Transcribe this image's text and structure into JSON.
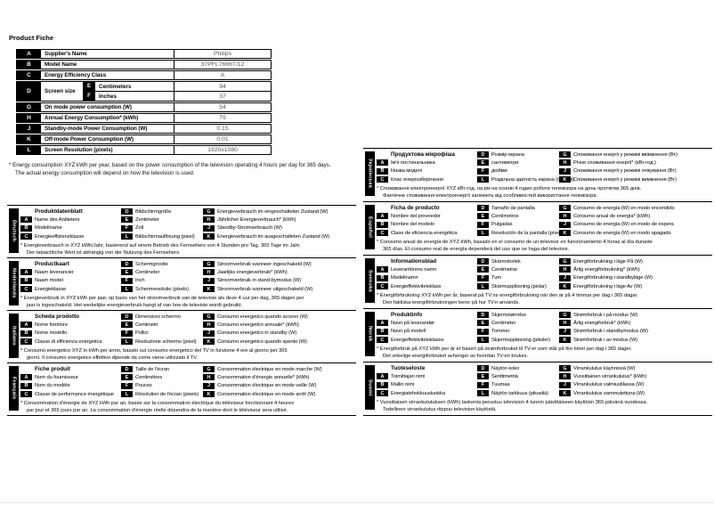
{
  "page_title": "Product Fiche",
  "colors": {
    "badge_bg": "#000000",
    "badge_fg": "#ffffff",
    "text": "#000000"
  },
  "table": {
    "rows": [
      {
        "key": "A",
        "label": "Supplier's Name",
        "value": "Philips"
      },
      {
        "key": "B",
        "label": "Model Name",
        "value": "37PFL7666T/12"
      },
      {
        "key": "C",
        "label": "Energy Efficiency Class",
        "value": "A"
      },
      {
        "key": "D",
        "label": "Screen size",
        "sub": [
          {
            "key": "E",
            "label": "Centimeters",
            "value": "94"
          },
          {
            "key": "F",
            "label": "Inches",
            "value": "37"
          }
        ]
      },
      {
        "key": "G",
        "label": "On mode power consumption (W)",
        "value": "54"
      },
      {
        "key": "H",
        "label": "Annual Energy Consumption* (kWh)",
        "value": "79"
      },
      {
        "key": "J",
        "label": "Standby-mode Power Consumption (W)",
        "value": "0.15"
      },
      {
        "key": "K",
        "label": "Off-mode Power Consumption (W)",
        "value": "0.01"
      },
      {
        "key": "L",
        "label": "Screen Resolution (pixels)",
        "value": "1920x1080"
      }
    ]
  },
  "footnote": "* Energy consumption XYZ kWh per year, based on the power consumption of the television operating 4 hours per day for 365 days.\nThe actual energy consumption will depend on how the television is used.",
  "sections": {
    "left": [
      {
        "language": "Deutsch",
        "title": "Produktdatenblatt",
        "items_abc": [
          {
            "key": "A",
            "label": "Name des Anbieters"
          },
          {
            "key": "B",
            "label": "Modellname"
          },
          {
            "key": "C",
            "label": "Energieeffizienzklasse"
          }
        ],
        "items_defl": [
          {
            "key": "D",
            "label": "Bildschirmgröße"
          },
          {
            "key": "E",
            "label": "Zentimeter"
          },
          {
            "key": "F",
            "label": "Zoll"
          },
          {
            "key": "L",
            "label": "Bildschirmauflösung (pixel)"
          }
        ],
        "items_ghjk": [
          {
            "key": "G",
            "label": "Energieverbrauch im eingeschalteten Zustand (W)"
          },
          {
            "key": "H",
            "label": "Jährlicher Energieverbrauch* (kWh)"
          },
          {
            "key": "J",
            "label": "Standby-Stromverbrauch (W)"
          },
          {
            "key": "K",
            "label": "Energieverbrauch im ausgeschalteten Zustand (W)"
          }
        ],
        "footnote": "* Energieverbrauch in XYZ kWh/Jahr, basierend auf einem Betrieb des Fernsehers von 4 Stunden pro Tag, 365 Tage im Jahr.\nDer tatsächliche Wert ist abhängig von der Nutzung des Fernsehers."
      },
      {
        "language": "Nederlands",
        "title": "Productkaart",
        "items_abc": [
          {
            "key": "A",
            "label": "Naam leverancier"
          },
          {
            "key": "B",
            "label": "Naam model"
          },
          {
            "key": "C",
            "label": "Energieklasse"
          }
        ],
        "items_defl": [
          {
            "key": "D",
            "label": "Schermgrootte"
          },
          {
            "key": "E",
            "label": "Centimeter"
          },
          {
            "key": "F",
            "label": "Inch"
          },
          {
            "key": "L",
            "label": "Schermresolutie (pixels)"
          }
        ],
        "items_ghjk": [
          {
            "key": "G",
            "label": "Stroomverbruik wanneer ingeschakeld (W)"
          },
          {
            "key": "H",
            "label": "Jaarlijks energieverbruik* (kWh)"
          },
          {
            "key": "J",
            "label": "Stroomverbruik in stand-bymodus (W)"
          },
          {
            "key": "K",
            "label": "Stroomverbruik wanneer uitgeschakeld (W)"
          }
        ],
        "footnote": "* Energieverbruik in XYZ kWh per jaar, op basis van het stroomverbruik van de televisie als deze 4 uur per dag, 365 dagen per\njaar is ingeschakeld. Het werkelijke energieverbruik hangt af van hoe de televisie wordt gebruikt."
      },
      {
        "language": "Italiano",
        "title": "Scheda prodotto",
        "items_abc": [
          {
            "key": "A",
            "label": "Nome fornitore"
          },
          {
            "key": "B",
            "label": "Nome modello"
          },
          {
            "key": "C",
            "label": "Classe di efficienza energetica"
          }
        ],
        "items_defl": [
          {
            "key": "D",
            "label": "Dimensioni schermo"
          },
          {
            "key": "E",
            "label": "Centimetri"
          },
          {
            "key": "F",
            "label": "Pollici"
          },
          {
            "key": "L",
            "label": "Risoluzione schermo (pixel)"
          }
        ],
        "items_ghjk": [
          {
            "key": "G",
            "label": "Consumo energetico quando acceso (W)"
          },
          {
            "key": "H",
            "label": "Consumo energetico annuale* (kWh)"
          },
          {
            "key": "J",
            "label": "Consumo energetico in standby (W)"
          },
          {
            "key": "K",
            "label": "Consumo energetico quando spento (W)"
          }
        ],
        "footnote": "* Consumo energetico XYZ in kWh per anno, basato sul consumo energetico del TV in funzione 4 ore al giorno per 365\ngiorni. Il consumo energetico effettivo dipende da come viene utilizzato il TV."
      },
      {
        "language": "Français",
        "title": "Fiche produit",
        "items_abc": [
          {
            "key": "A",
            "label": "Nom du fournisseur"
          },
          {
            "key": "B",
            "label": "Nom du modèle"
          },
          {
            "key": "C",
            "label": "Classe de performance énergétique"
          }
        ],
        "items_defl": [
          {
            "key": "D",
            "label": "Taille de l'écran"
          },
          {
            "key": "E",
            "label": "Centimètres"
          },
          {
            "key": "F",
            "label": "Pouces"
          },
          {
            "key": "L",
            "label": "Résolution de l'écran (pixels)"
          }
        ],
        "items_ghjk": [
          {
            "key": "G",
            "label": "Consommation électrique en mode marche (W)"
          },
          {
            "key": "H",
            "label": "Consommation d'énergie annuelle* (kWh)"
          },
          {
            "key": "J",
            "label": "Consommation électrique en mode veille (W)"
          },
          {
            "key": "K",
            "label": "Consommation électrique en mode arrêt (W)"
          }
        ],
        "footnote": "* Consommation d'énergie de XYZ kWh par an, basée sur la consommation électrique du téléviseur fonctionnant 4 heures\npar jour et 365 jours par an. La consommation d'énergie réelle dépendra de la manière dont le téléviseur sera utilisé."
      }
    ],
    "right": [
      {
        "language": "Українська",
        "title": "Продуктова мікрофіша",
        "items_abc": [
          {
            "key": "A",
            "label": "Ім'я постачальника"
          },
          {
            "key": "B",
            "label": "Назва моделі"
          },
          {
            "key": "C",
            "label": "Клас енергозберігання"
          }
        ],
        "items_defl": [
          {
            "key": "D",
            "label": "Розмір екрана"
          },
          {
            "key": "E",
            "label": "сантиметри"
          },
          {
            "key": "F",
            "label": "дюйми"
          },
          {
            "key": "L",
            "label": "Роздільна здатність екрана (пікселі)"
          }
        ],
        "items_ghjk": [
          {
            "key": "G",
            "label": "Споживання енергії у режимі ввімкнення (Вт)"
          },
          {
            "key": "H",
            "label": "Річне споживання енергії* (кВт-год.)"
          },
          {
            "key": "J",
            "label": "Споживання енергії у режимі очікування (Вт)"
          },
          {
            "key": "K",
            "label": "Споживання енергії у режимі вимкнення (Вт)"
          }
        ],
        "footnote": "* Споживання електроенергії XYZ кВт-год. на рік на основі 4 годин роботи телевізора на день протягом 365 днів.\nФактичне споживання електроенергії залежить від особливостей використання телевізора."
      },
      {
        "language": "Español",
        "title": "Ficha de producto",
        "items_abc": [
          {
            "key": "A",
            "label": "Nombre del proveedor"
          },
          {
            "key": "B",
            "label": "Nombre del modelo"
          },
          {
            "key": "C",
            "label": "Clase de eficiencia energética"
          }
        ],
        "items_defl": [
          {
            "key": "D",
            "label": "Tamaño de pantalla"
          },
          {
            "key": "E",
            "label": "Centímetros"
          },
          {
            "key": "F",
            "label": "Pulgadas"
          },
          {
            "key": "L",
            "label": "Resolución de la pantalla (píxeles)"
          }
        ],
        "items_ghjk": [
          {
            "key": "G",
            "label": "Consumo de energía (W) en modo encendido"
          },
          {
            "key": "H",
            "label": "Consumo anual de energía* (kWh)"
          },
          {
            "key": "J",
            "label": "Consumo de energía (W) en modo de espera"
          },
          {
            "key": "K",
            "label": "Consumo de energía (W) en modo apagado"
          }
        ],
        "footnote": "* Consumo anual de energía de XYZ kWh, basado en el consumo de un televisor en funcionamiento 4 horas al día durante\n365 días. El consumo real de energía dependerá del uso que se haga del televisor."
      },
      {
        "language": "Svenska",
        "title": "Informationsblad",
        "items_abc": [
          {
            "key": "A",
            "label": "Leverantörens namn"
          },
          {
            "key": "B",
            "label": "Modellnamn"
          },
          {
            "key": "C",
            "label": "Energieffektivitetsklass"
          }
        ],
        "items_defl": [
          {
            "key": "D",
            "label": "Skärmstorlek"
          },
          {
            "key": "E",
            "label": "Centimetrar"
          },
          {
            "key": "F",
            "label": "Tum"
          },
          {
            "key": "L",
            "label": "Skärmupplösning (pixlar)"
          }
        ],
        "items_ghjk": [
          {
            "key": "G",
            "label": "Energiförbrukning i läge På (W)"
          },
          {
            "key": "H",
            "label": "Årlig energiförbrukning* (kWh)"
          },
          {
            "key": "J",
            "label": "Energiförbrukning i standbyläge (W)"
          },
          {
            "key": "K",
            "label": "Energiförbrukning i läge Av (W)"
          }
        ],
        "footnote": "* Energiförbrukning XYZ kWh per år, baserat på TV:ns energiförbrukning när den är på 4 timmar per dag i 365 dagar.\nDen faktiska energiförbrukningen beror på hur TV:n används."
      },
      {
        "language": "Norsk",
        "title": "Produktinfo",
        "items_abc": [
          {
            "key": "A",
            "label": "Navn på leverandør"
          },
          {
            "key": "B",
            "label": "Navn på modell"
          },
          {
            "key": "C",
            "label": "Energieffektivitetsklasse"
          }
        ],
        "items_defl": [
          {
            "key": "D",
            "label": "Skjermstørrelse"
          },
          {
            "key": "E",
            "label": "Centimeter"
          },
          {
            "key": "F",
            "label": "Tommer"
          },
          {
            "key": "L",
            "label": "Skjermoppløsning (piksler)"
          }
        ],
        "items_ghjk": [
          {
            "key": "G",
            "label": "Strømforbruk i på-modus (W)"
          },
          {
            "key": "H",
            "label": "Årlig energiforbruk* (kWh)"
          },
          {
            "key": "J",
            "label": "Strømforbruk i standbymodus (W)"
          },
          {
            "key": "K",
            "label": "Strømforbruk i av-modus (W)"
          }
        ],
        "footnote": "* Energiforbruk på XYZ kWh per år er basert på strømforbruket til TV-er som står på fire timer per dag i 365 dager.\nDet virkelige energiforbruket avhenger av hvordan TV-en brukes."
      },
      {
        "language": "Suomi",
        "title": "Tuoteseloste",
        "items_abc": [
          {
            "key": "A",
            "label": "Toimittajan nimi"
          },
          {
            "key": "B",
            "label": "Mallin nimi"
          },
          {
            "key": "C",
            "label": "Energiatehokkuusluokka"
          }
        ],
        "items_defl": [
          {
            "key": "D",
            "label": "Näytön koko"
          },
          {
            "key": "E",
            "label": "Senttimetriä"
          },
          {
            "key": "F",
            "label": "Tuumaa"
          },
          {
            "key": "L",
            "label": "Näytön tarkkuus (pikseliä)"
          }
        ],
        "items_ghjk": [
          {
            "key": "G",
            "label": "Virrankulutus käynnissä (W)"
          },
          {
            "key": "H",
            "label": "Vuosittainen virrankulutus* (kWh)"
          },
          {
            "key": "J",
            "label": "Virrankulutus valmiustilassa (W)"
          },
          {
            "key": "K",
            "label": "Virrankulutus sammutettuna (W)"
          }
        ],
        "footnote": "* Vuosittaisen virrankulutuksen (kWh) laskenta perustuu television 4 tunnin päivittäiseen käyttöön 365 päivänä vuodessa.\nTodellinen virrankulutus riippuu television käytöstä."
      }
    ]
  }
}
